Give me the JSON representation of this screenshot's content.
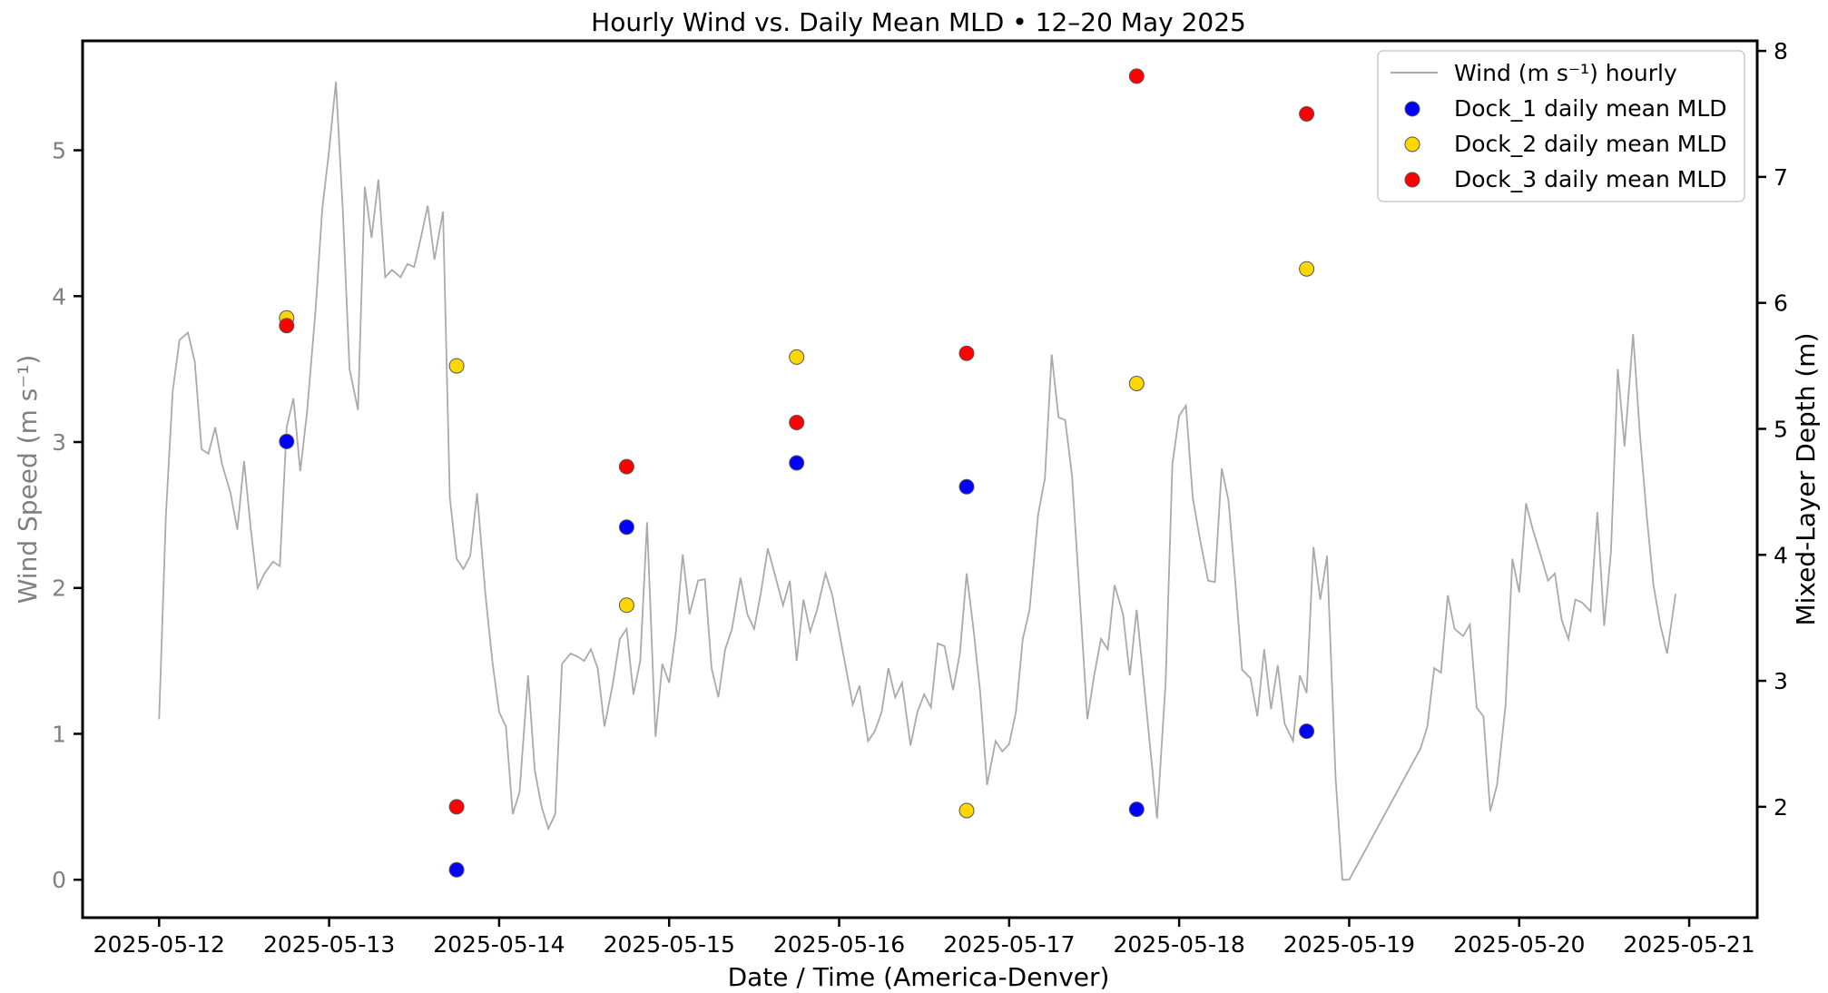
{
  "chart_data": {
    "type": "line+scatter",
    "title": "Hourly Wind vs. Daily Mean MLD  •  12–20 May 2025",
    "xlabel": "Date / Time (America-Denver)",
    "ylabel_left": "Wind Speed (m s⁻¹)",
    "ylabel_right": "Mixed-Layer Depth (m)",
    "x_range_days": [
      -0.45,
      9.4
    ],
    "ylim_left": [
      -0.26,
      5.75
    ],
    "ylim_right": [
      1.12,
      8.08
    ],
    "x_ticks": [
      {
        "day": 0,
        "label": "2025-05-12"
      },
      {
        "day": 1,
        "label": "2025-05-13"
      },
      {
        "day": 2,
        "label": "2025-05-14"
      },
      {
        "day": 3,
        "label": "2025-05-15"
      },
      {
        "day": 4,
        "label": "2025-05-16"
      },
      {
        "day": 5,
        "label": "2025-05-17"
      },
      {
        "day": 6,
        "label": "2025-05-18"
      },
      {
        "day": 7,
        "label": "2025-05-19"
      },
      {
        "day": 8,
        "label": "2025-05-20"
      },
      {
        "day": 9,
        "label": "2025-05-21"
      }
    ],
    "y_ticks_left": [
      {
        "value": 0,
        "label": "0"
      },
      {
        "value": 1,
        "label": "1"
      },
      {
        "value": 2,
        "label": "2"
      },
      {
        "value": 3,
        "label": "3"
      },
      {
        "value": 4,
        "label": "4"
      },
      {
        "value": 5,
        "label": "5"
      }
    ],
    "y_ticks_right": [
      {
        "value": 2,
        "label": "2"
      },
      {
        "value": 3,
        "label": "3"
      },
      {
        "value": 4,
        "label": "4"
      },
      {
        "value": 5,
        "label": "5"
      },
      {
        "value": 6,
        "label": "6"
      },
      {
        "value": 7,
        "label": "7"
      },
      {
        "value": 8,
        "label": "8"
      }
    ],
    "wind": {
      "name": "Wind (m s⁻¹) hourly",
      "color": "#aaaaaa",
      "days": [
        0,
        0.04,
        0.08,
        0.12,
        0.17,
        0.21,
        0.25,
        0.29,
        0.33,
        0.37,
        0.42,
        0.46,
        0.5,
        0.54,
        0.58,
        0.62,
        0.67,
        0.71,
        0.75,
        0.79,
        0.83,
        0.87,
        0.92,
        0.96,
        1.0,
        1.04,
        1.08,
        1.12,
        1.17,
        1.21,
        1.25,
        1.29,
        1.33,
        1.37,
        1.42,
        1.46,
        1.5,
        1.54,
        1.58,
        1.62,
        1.67,
        1.71,
        1.75,
        1.79,
        1.83,
        1.87,
        1.92,
        1.96,
        2.0,
        2.04,
        2.08,
        2.12,
        2.17,
        2.21,
        2.25,
        2.29,
        2.33,
        2.37,
        2.42,
        2.46,
        2.5,
        2.54,
        2.58,
        2.62,
        2.67,
        2.71,
        2.75,
        2.79,
        2.83,
        2.87,
        2.92,
        2.96,
        3.0,
        3.04,
        3.08,
        3.12,
        3.17,
        3.21,
        3.25,
        3.29,
        3.33,
        3.37,
        3.42,
        3.46,
        3.5,
        3.54,
        3.58,
        3.62,
        3.67,
        3.71,
        3.75,
        3.79,
        3.83,
        3.87,
        3.92,
        3.96,
        4.0,
        4.04,
        4.08,
        4.12,
        4.17,
        4.21,
        4.25,
        4.29,
        4.33,
        4.37,
        4.42,
        4.46,
        4.5,
        4.54,
        4.58,
        4.62,
        4.67,
        4.71,
        4.75,
        4.79,
        4.83,
        4.87,
        4.92,
        4.96,
        5.0,
        5.04,
        5.08,
        5.12,
        5.17,
        5.21,
        5.25,
        5.29,
        5.33,
        5.37,
        5.42,
        5.46,
        5.5,
        5.54,
        5.58,
        5.62,
        5.67,
        5.71,
        5.75,
        5.79,
        5.83,
        5.87,
        5.92,
        5.96,
        6.0,
        6.04,
        6.08,
        6.12,
        6.17,
        6.21,
        6.25,
        6.29,
        6.33,
        6.37,
        6.42,
        6.46,
        6.5,
        6.54,
        6.58,
        6.62,
        6.67,
        6.71,
        6.75,
        6.79,
        6.83,
        6.87,
        6.92,
        6.96,
        7.0,
        7.42,
        7.46,
        7.5,
        7.54,
        7.58,
        7.62,
        7.67,
        7.71,
        7.75,
        7.79,
        7.83,
        7.87,
        7.92,
        7.96,
        8.0,
        8.04,
        8.08,
        8.12,
        8.17,
        8.21,
        8.25,
        8.29,
        8.33,
        8.37,
        8.42,
        8.46,
        8.5,
        8.54,
        8.58,
        8.62,
        8.67,
        8.71,
        8.75,
        8.79,
        8.83,
        8.87,
        8.92,
        8.96
      ],
      "speed": [
        1.1,
        2.5,
        3.35,
        3.7,
        3.75,
        3.55,
        2.95,
        2.92,
        3.1,
        2.85,
        2.65,
        2.4,
        2.87,
        2.4,
        2.0,
        2.1,
        2.18,
        2.15,
        3.1,
        3.3,
        2.8,
        3.2,
        3.9,
        4.6,
        5.0,
        5.47,
        4.6,
        3.5,
        3.22,
        4.75,
        4.4,
        4.8,
        4.13,
        4.18,
        4.13,
        4.22,
        4.2,
        4.4,
        4.62,
        4.25,
        4.58,
        2.62,
        2.2,
        2.13,
        2.22,
        2.65,
        1.95,
        1.5,
        1.15,
        1.05,
        0.45,
        0.6,
        1.4,
        0.75,
        0.5,
        0.35,
        0.45,
        1.48,
        1.55,
        1.53,
        1.5,
        1.58,
        1.45,
        1.05,
        1.35,
        1.65,
        1.72,
        1.27,
        1.5,
        2.45,
        0.98,
        1.48,
        1.35,
        1.7,
        2.23,
        1.82,
        2.05,
        2.06,
        1.45,
        1.25,
        1.58,
        1.72,
        2.07,
        1.82,
        1.72,
        1.97,
        2.27,
        2.1,
        1.88,
        2.05,
        1.5,
        1.92,
        1.7,
        1.85,
        2.1,
        1.95,
        1.7,
        1.45,
        1.2,
        1.33,
        0.95,
        1.02,
        1.15,
        1.45,
        1.25,
        1.35,
        0.92,
        1.15,
        1.27,
        1.18,
        1.62,
        1.6,
        1.3,
        1.55,
        2.1,
        1.72,
        1.28,
        0.65,
        0.95,
        0.88,
        0.93,
        1.15,
        1.65,
        1.85,
        2.5,
        2.75,
        3.6,
        3.17,
        3.15,
        2.77,
        1.85,
        1.1,
        1.4,
        1.65,
        1.58,
        2.02,
        1.82,
        1.4,
        1.85,
        1.38,
        0.9,
        0.42,
        1.35,
        2.85,
        3.18,
        3.25,
        2.62,
        2.35,
        2.05,
        2.04,
        2.82,
        2.6,
        2.04,
        1.44,
        1.38,
        1.12,
        1.58,
        1.17,
        1.47,
        1.07,
        0.95,
        1.4,
        1.28,
        2.28,
        1.92,
        2.22,
        0.7,
        0.0,
        0.0,
        0.9,
        1.05,
        1.45,
        1.42,
        1.95,
        1.72,
        1.67,
        1.75,
        1.18,
        1.12,
        0.47,
        0.65,
        1.2,
        2.2,
        1.97,
        2.58,
        2.4,
        2.25,
        2.05,
        2.1,
        1.78,
        1.65,
        1.92,
        1.9,
        1.84,
        2.52,
        1.74,
        2.25,
        3.5,
        2.97,
        3.74,
        3.05,
        2.5,
        2.02,
        1.75,
        1.55,
        1.96
      ]
    },
    "series": [
      {
        "name": "Dock_1 daily mean MLD",
        "color": "#0000ff",
        "days": [
          0.75,
          1.75,
          2.75,
          3.75,
          4.75,
          5.75,
          6.75
        ],
        "mld": [
          4.9,
          1.5,
          4.22,
          4.73,
          4.54,
          1.98,
          2.6
        ]
      },
      {
        "name": "Dock_2 daily mean MLD",
        "color": "#ffd700",
        "days": [
          0.75,
          1.75,
          2.75,
          3.75,
          4.75,
          5.75,
          6.75
        ],
        "mld": [
          5.88,
          5.5,
          3.6,
          5.57,
          1.97,
          5.36,
          6.27
        ]
      },
      {
        "name": "Dock_3 daily mean MLD",
        "color": "#ff0000",
        "days": [
          0.75,
          1.75,
          2.75,
          3.75,
          4.75,
          5.75,
          6.75
        ],
        "mld": [
          5.82,
          2.0,
          4.7,
          5.05,
          5.6,
          7.8,
          7.5
        ]
      }
    ],
    "legend_location": "top-right"
  }
}
